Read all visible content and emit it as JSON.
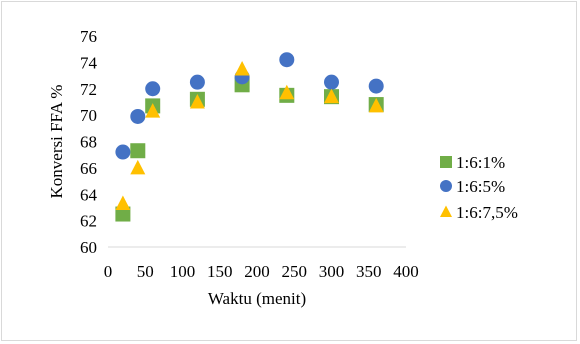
{
  "chart_data": {
    "type": "scatter",
    "title": "",
    "xlabel": "Waktu (menit)",
    "ylabel": "Konversi FFA %",
    "xlim": [
      0,
      400
    ],
    "ylim": [
      60,
      76
    ],
    "x_ticks": [
      0,
      50,
      100,
      150,
      200,
      250,
      300,
      350,
      400
    ],
    "y_ticks": [
      60,
      62,
      64,
      66,
      68,
      70,
      72,
      74,
      76
    ],
    "grid": false,
    "legend_position": "right",
    "series": [
      {
        "name": "1:6:1%",
        "marker": "square",
        "color": "#70ad47",
        "points": [
          [
            20,
            62.5
          ],
          [
            40,
            67.3
          ],
          [
            60,
            70.7
          ],
          [
            120,
            71.2
          ],
          [
            180,
            72.3
          ],
          [
            240,
            71.5
          ],
          [
            300,
            71.4
          ],
          [
            360,
            70.8
          ]
        ]
      },
      {
        "name": "1:6:5%",
        "marker": "circle",
        "color": "#4472c4",
        "points": [
          [
            20,
            67.2
          ],
          [
            40,
            69.9
          ],
          [
            60,
            72.0
          ],
          [
            120,
            72.5
          ],
          [
            180,
            72.9
          ],
          [
            240,
            74.2
          ],
          [
            300,
            72.5
          ],
          [
            360,
            72.2
          ]
        ]
      },
      {
        "name": "1:6:7,5%",
        "marker": "triangle",
        "color": "#ffc000",
        "points": [
          [
            20,
            63.3
          ],
          [
            40,
            66.0
          ],
          [
            60,
            70.3
          ],
          [
            120,
            71.0
          ],
          [
            180,
            73.5
          ],
          [
            240,
            71.7
          ],
          [
            300,
            71.4
          ],
          [
            360,
            70.7
          ]
        ]
      }
    ]
  }
}
